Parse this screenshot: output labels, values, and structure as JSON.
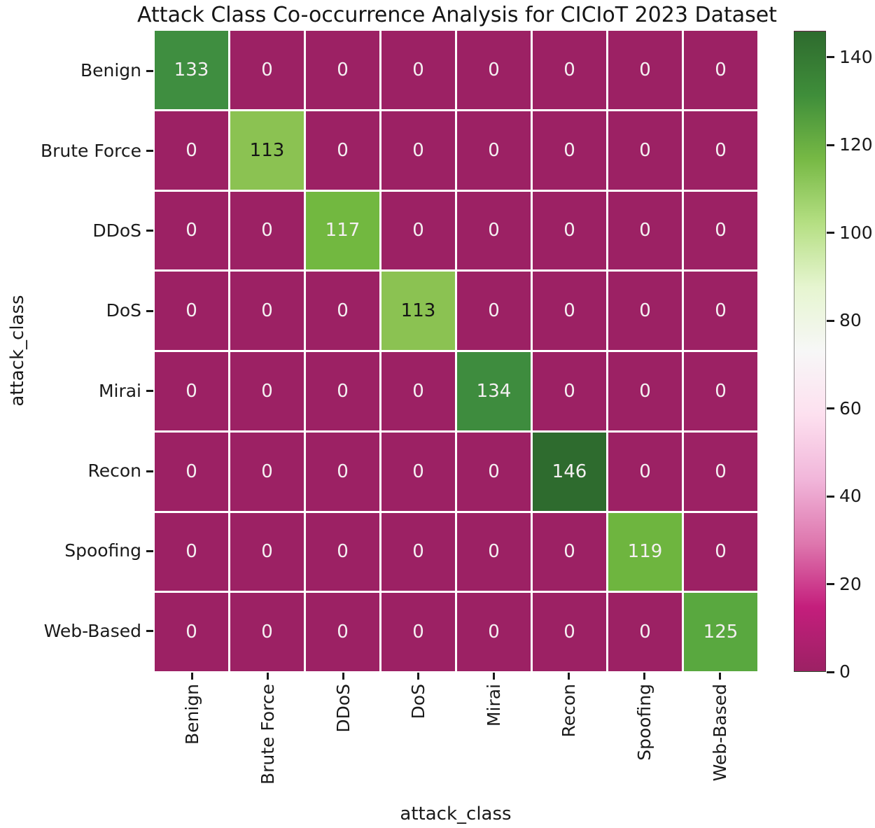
{
  "chart_data": {
    "type": "heatmap",
    "title": "Attack Class Co-occurrence Analysis for CICIoT 2023 Dataset",
    "xlabel": "attack_class",
    "ylabel": "attack_class",
    "categories": [
      "Benign",
      "Brute Force",
      "DDoS",
      "DoS",
      "Mirai",
      "Recon",
      "Spoofing",
      "Web-Based"
    ],
    "matrix": [
      [
        133,
        0,
        0,
        0,
        0,
        0,
        0,
        0
      ],
      [
        0,
        113,
        0,
        0,
        0,
        0,
        0,
        0
      ],
      [
        0,
        0,
        117,
        0,
        0,
        0,
        0,
        0
      ],
      [
        0,
        0,
        0,
        113,
        0,
        0,
        0,
        0
      ],
      [
        0,
        0,
        0,
        0,
        134,
        0,
        0,
        0
      ],
      [
        0,
        0,
        0,
        0,
        0,
        146,
        0,
        0
      ],
      [
        0,
        0,
        0,
        0,
        0,
        0,
        119,
        0
      ],
      [
        0,
        0,
        0,
        0,
        0,
        0,
        0,
        125
      ]
    ],
    "diagonal_values": [
      133,
      113,
      117,
      113,
      134,
      146,
      119,
      125
    ],
    "colorbar": {
      "vmin": 0,
      "vmax": 146,
      "ticks": [
        0,
        20,
        40,
        60,
        80,
        100,
        120,
        140
      ],
      "colormap": "PiYG",
      "gradient_stops_bottom_to_top": [
        "#9c2164",
        "#c41e7c",
        "#de77ae",
        "#f1b6da",
        "#fde0ef",
        "#f7f7f7",
        "#e6f5d0",
        "#b5df83",
        "#77b945",
        "#3f8e3a",
        "#2e6b2e"
      ]
    },
    "colors": {
      "background": "#ffffff",
      "zero_cell": "#9c2164",
      "value_fill": {
        "113": "#8bc252",
        "117": "#72b840",
        "119": "#6eb53f",
        "125": "#59a83f",
        "133": "#3f8e40",
        "134": "#3e8c3e",
        "146": "#2e6b2e"
      },
      "annotation_light": "#f5f0f2",
      "annotation_dark": "#151515",
      "dark_text_values": [
        113
      ],
      "axis_text": "#1a1a1a"
    }
  }
}
